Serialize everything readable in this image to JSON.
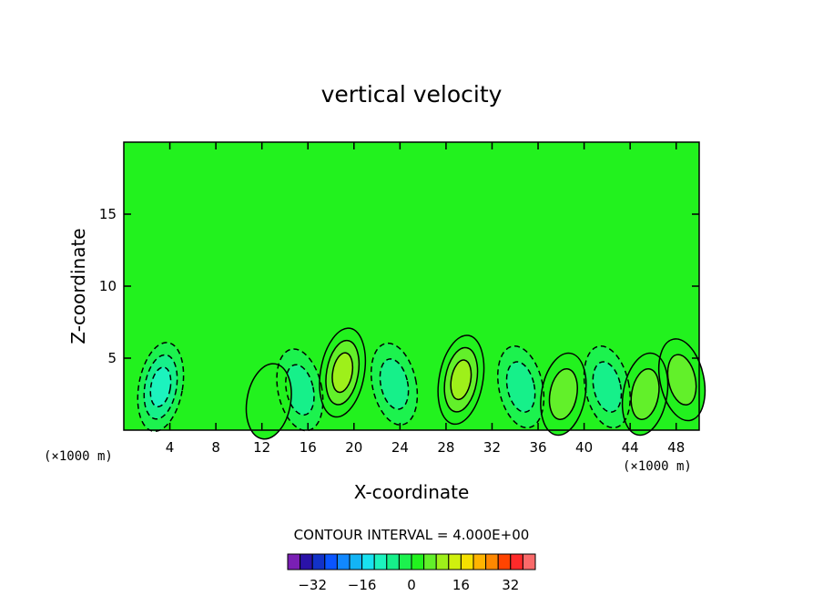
{
  "chart_data": {
    "type": "heatmap",
    "subtype": "filled-contour",
    "title": "vertical velocity",
    "xlabel": "X-coordinate",
    "ylabel": "Z-coordinate",
    "x_unit": "(×1000 m)",
    "xlim": [
      0,
      50
    ],
    "ylim": [
      0,
      20
    ],
    "x_ticks": [
      4,
      8,
      12,
      16,
      20,
      24,
      28,
      32,
      36,
      40,
      44,
      48
    ],
    "y_ticks": [
      5,
      10,
      15
    ],
    "contour_interval_label": "CONTOUR INTERVAL = 4.000E+00",
    "colorbar": {
      "tick_labels": [
        "−32",
        "−16",
        "0",
        "16",
        "32"
      ],
      "tick_values": [
        -32,
        -16,
        0,
        16,
        32
      ],
      "levels": [
        -40,
        -36,
        -32,
        -28,
        -24,
        -20,
        -16,
        -12,
        -8,
        -4,
        0,
        4,
        8,
        12,
        16,
        20,
        24,
        28,
        32,
        36,
        40
      ],
      "colors": [
        "#7a1fb4",
        "#2a12a8",
        "#1232c8",
        "#0a55ff",
        "#1188ff",
        "#13b4f5",
        "#19e2f0",
        "#1cf3be",
        "#16f08a",
        "#1cf24e",
        "#22f21e",
        "#62f02a",
        "#9ef01a",
        "#d0f00e",
        "#f5e000",
        "#ffb400",
        "#ff8800",
        "#ff4400",
        "#ff2a2a",
        "#fa6a6a",
        "#f8a8a8"
      ]
    },
    "background_level": 0,
    "features": [
      {
        "x": 3.2,
        "z": 3.0,
        "w": -12
      },
      {
        "x": 15.3,
        "z": 2.8,
        "w": -8
      },
      {
        "x": 19.0,
        "z": 4.0,
        "w": 12
      },
      {
        "x": 23.5,
        "z": 3.2,
        "w": -8
      },
      {
        "x": 29.3,
        "z": 3.5,
        "w": 12
      },
      {
        "x": 34.5,
        "z": 3.0,
        "w": -8
      },
      {
        "x": 38.2,
        "z": 2.5,
        "w": 8
      },
      {
        "x": 42.0,
        "z": 3.0,
        "w": -8
      },
      {
        "x": 45.3,
        "z": 2.5,
        "w": 8
      },
      {
        "x": 48.5,
        "z": 3.5,
        "w": 8
      },
      {
        "x": 12.6,
        "z": 2.0,
        "w": 4
      }
    ]
  }
}
